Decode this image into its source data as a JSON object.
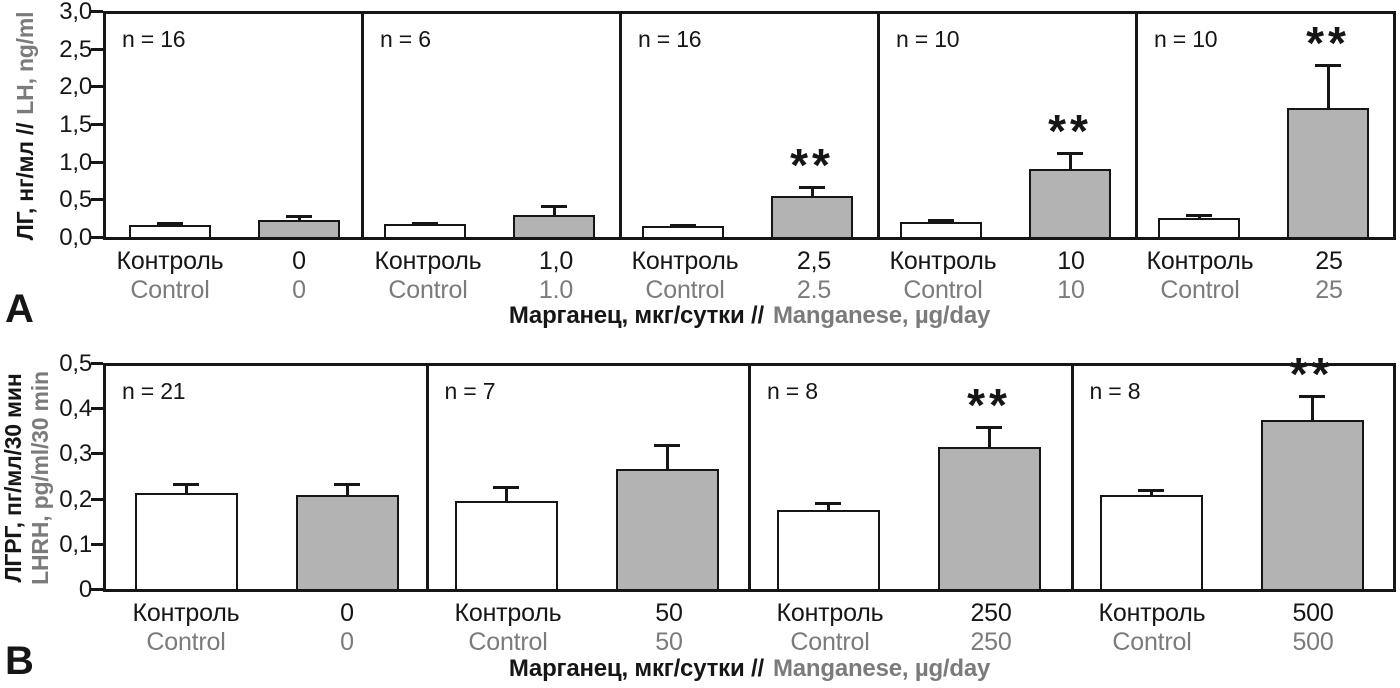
{
  "figure": {
    "colors": {
      "axis_black": "#161616",
      "gray_text": "#7b7b7b",
      "bar_fill_control": "#ffffff",
      "bar_fill_treatment": "#b3b3b3"
    }
  },
  "chart_data": [
    {
      "type": "bar",
      "panel_letter": "A",
      "ylabel": {
        "ru": "ЛГ, нг/мл //",
        "en": "LH, ng/ml"
      },
      "xlabel": {
        "ru": "Марганец, мкг/сутки //",
        "en": "Manganese, µg/day"
      },
      "ylim": [
        0,
        3.0
      ],
      "ytick_labels": [
        "3,0",
        "2,5",
        "2,0",
        "1,5",
        "1,0",
        "0,5",
        "0,0"
      ],
      "grid": false,
      "legend": "none",
      "subpanels": [
        {
          "n": "n = 16",
          "bars": [
            {
              "label_ru": "Контроль",
              "label_en": "Control",
              "value": 0.16,
              "error": 0.04,
              "fill": "control",
              "sig": ""
            },
            {
              "label_ru": "0",
              "label_en": "0",
              "value": 0.23,
              "error": 0.06,
              "fill": "treatment",
              "sig": ""
            }
          ]
        },
        {
          "n": "n = 6",
          "bars": [
            {
              "label_ru": "Контроль",
              "label_en": "Control",
              "value": 0.17,
              "error": 0.03,
              "fill": "control",
              "sig": ""
            },
            {
              "label_ru": "1,0",
              "label_en": "1.0",
              "value": 0.3,
              "error": 0.13,
              "fill": "treatment",
              "sig": ""
            }
          ]
        },
        {
          "n": "n = 16",
          "bars": [
            {
              "label_ru": "Контроль",
              "label_en": "Control",
              "value": 0.15,
              "error": 0.03,
              "fill": "control",
              "sig": ""
            },
            {
              "label_ru": "2,5",
              "label_en": "2.5",
              "value": 0.55,
              "error": 0.13,
              "fill": "treatment",
              "sig": "**"
            }
          ]
        },
        {
          "n": "n = 10",
          "bars": [
            {
              "label_ru": "Контроль",
              "label_en": "Control",
              "value": 0.2,
              "error": 0.04,
              "fill": "control",
              "sig": ""
            },
            {
              "label_ru": "10",
              "label_en": "10",
              "value": 0.92,
              "error": 0.23,
              "fill": "treatment",
              "sig": "**"
            }
          ]
        },
        {
          "n": "n = 10",
          "bars": [
            {
              "label_ru": "Контроль",
              "label_en": "Control",
              "value": 0.26,
              "error": 0.05,
              "fill": "control",
              "sig": ""
            },
            {
              "label_ru": "25",
              "label_en": "25",
              "value": 1.73,
              "error": 0.6,
              "fill": "treatment",
              "sig": "**"
            }
          ]
        }
      ]
    },
    {
      "type": "bar",
      "panel_letter": "B",
      "ylabel": {
        "ru": "ЛГРГ, пг/мл/30 мин",
        "en": "LHRH, pg/ml/30 min"
      },
      "xlabel": {
        "ru": "Марганец, мкг/сутки //",
        "en": "Manganese, µg/day"
      },
      "ylim": [
        0,
        0.5
      ],
      "ytick_labels": [
        "0,5",
        "0,4",
        "0,3",
        "0,2",
        "0,1",
        "0"
      ],
      "grid": false,
      "legend": "none",
      "subpanels": [
        {
          "n": "n = 21",
          "bars": [
            {
              "label_ru": "Контроль",
              "label_en": "Control",
              "value": 0.215,
              "error": 0.022,
              "fill": "control",
              "sig": ""
            },
            {
              "label_ru": "0",
              "label_en": "0",
              "value": 0.21,
              "error": 0.027,
              "fill": "treatment",
              "sig": ""
            }
          ]
        },
        {
          "n": "n = 7",
          "bars": [
            {
              "label_ru": "Контроль",
              "label_en": "Control",
              "value": 0.198,
              "error": 0.033,
              "fill": "control",
              "sig": ""
            },
            {
              "label_ru": "50",
              "label_en": "50",
              "value": 0.268,
              "error": 0.058,
              "fill": "treatment",
              "sig": ""
            }
          ]
        },
        {
          "n": "n = 8",
          "bars": [
            {
              "label_ru": "Контроль",
              "label_en": "Control",
              "value": 0.178,
              "error": 0.018,
              "fill": "control",
              "sig": ""
            },
            {
              "label_ru": "250",
              "label_en": "250",
              "value": 0.318,
              "error": 0.047,
              "fill": "treatment",
              "sig": "**"
            }
          ]
        },
        {
          "n": "n = 8",
          "bars": [
            {
              "label_ru": "Контроль",
              "label_en": "Control",
              "value": 0.21,
              "error": 0.014,
              "fill": "control",
              "sig": ""
            },
            {
              "label_ru": "500",
              "label_en": "500",
              "value": 0.38,
              "error": 0.055,
              "fill": "treatment",
              "sig": "**"
            }
          ]
        }
      ]
    }
  ]
}
